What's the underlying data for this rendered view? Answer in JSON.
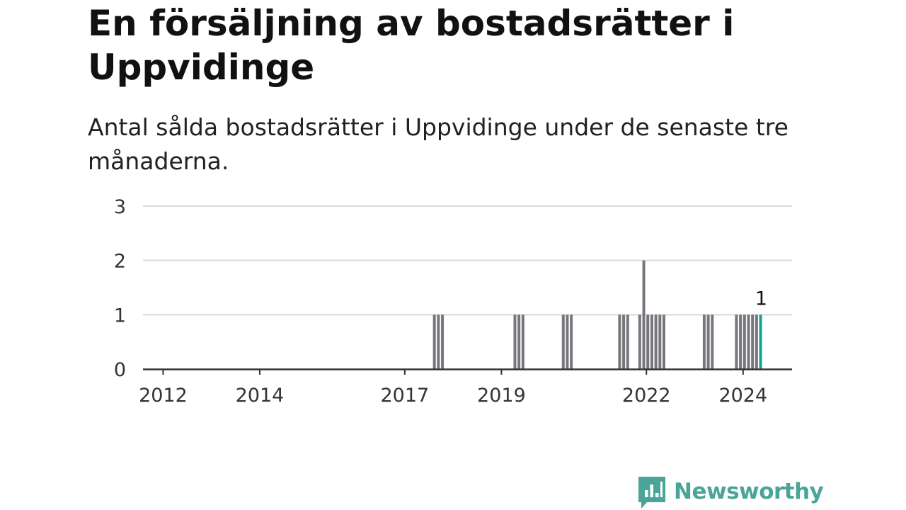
{
  "title": "En försäljning av bostadsrätter i Uppvidinge",
  "subtitle": "Antal sålda bostadsrätter i Uppvidinge under de senaste tre månaderna.",
  "brand": {
    "name": "Newsworthy",
    "color": "#4aa598",
    "icon": "newsworthy-chart-bubble-icon"
  },
  "colors": {
    "bar": "#76767c",
    "highlight": "#1a9e96",
    "grid": "#d9d9d9",
    "axis": "#333333",
    "text": "#333333"
  },
  "chart_data": {
    "type": "bar",
    "x_unit": "month",
    "xlim": [
      "2011-08",
      "2024-11"
    ],
    "ylim": [
      0,
      3
    ],
    "y_ticks": [
      0,
      1,
      2,
      3
    ],
    "x_ticks": [
      "2012",
      "2014",
      "2017",
      "2019",
      "2022",
      "2024"
    ],
    "grid": true,
    "highlight_label": "1",
    "series": [
      {
        "x": [
          "2017-08",
          "2017-09",
          "2017-10",
          "2019-04",
          "2019-05",
          "2019-06",
          "2020-04",
          "2020-05",
          "2020-06",
          "2021-06",
          "2021-07",
          "2021-08",
          "2021-11",
          "2021-12",
          "2022-01",
          "2022-02",
          "2022-03",
          "2022-04",
          "2022-05",
          "2023-03",
          "2023-04",
          "2023-05",
          "2023-11",
          "2023-12",
          "2024-01",
          "2024-02",
          "2024-03",
          "2024-04",
          "2024-05"
        ],
        "values": [
          1,
          1,
          1,
          1,
          1,
          1,
          1,
          1,
          1,
          1,
          1,
          1,
          1,
          2,
          1,
          1,
          1,
          1,
          1,
          1,
          1,
          1,
          1,
          1,
          1,
          1,
          1,
          1,
          1
        ],
        "highlight_index": 28
      }
    ]
  }
}
